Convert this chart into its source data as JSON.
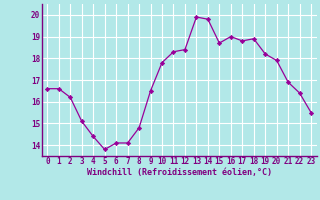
{
  "x": [
    0,
    1,
    2,
    3,
    4,
    5,
    6,
    7,
    8,
    9,
    10,
    11,
    12,
    13,
    14,
    15,
    16,
    17,
    18,
    19,
    20,
    21,
    22,
    23
  ],
  "y": [
    16.6,
    16.6,
    16.2,
    15.1,
    14.4,
    13.8,
    14.1,
    14.1,
    14.8,
    16.5,
    17.8,
    18.3,
    18.4,
    19.9,
    19.8,
    18.7,
    19.0,
    18.8,
    18.9,
    18.2,
    17.9,
    16.9,
    16.4,
    15.5
  ],
  "line_color": "#990099",
  "marker": "D",
  "marker_size": 2.2,
  "bg_color": "#b2e8e8",
  "grid_color": "#ffffff",
  "xlabel": "Windchill (Refroidissement éolien,°C)",
  "xlabel_color": "#800080",
  "tick_color": "#800080",
  "axis_color": "#800080",
  "ylim": [
    13.5,
    20.5
  ],
  "xlim": [
    -0.5,
    23.5
  ],
  "yticks": [
    14,
    15,
    16,
    17,
    18,
    19,
    20
  ],
  "xticks": [
    0,
    1,
    2,
    3,
    4,
    5,
    6,
    7,
    8,
    9,
    10,
    11,
    12,
    13,
    14,
    15,
    16,
    17,
    18,
    19,
    20,
    21,
    22,
    23
  ],
  "tick_fontsize": 5.5,
  "xlabel_fontsize": 6.0,
  "line_width": 0.9
}
